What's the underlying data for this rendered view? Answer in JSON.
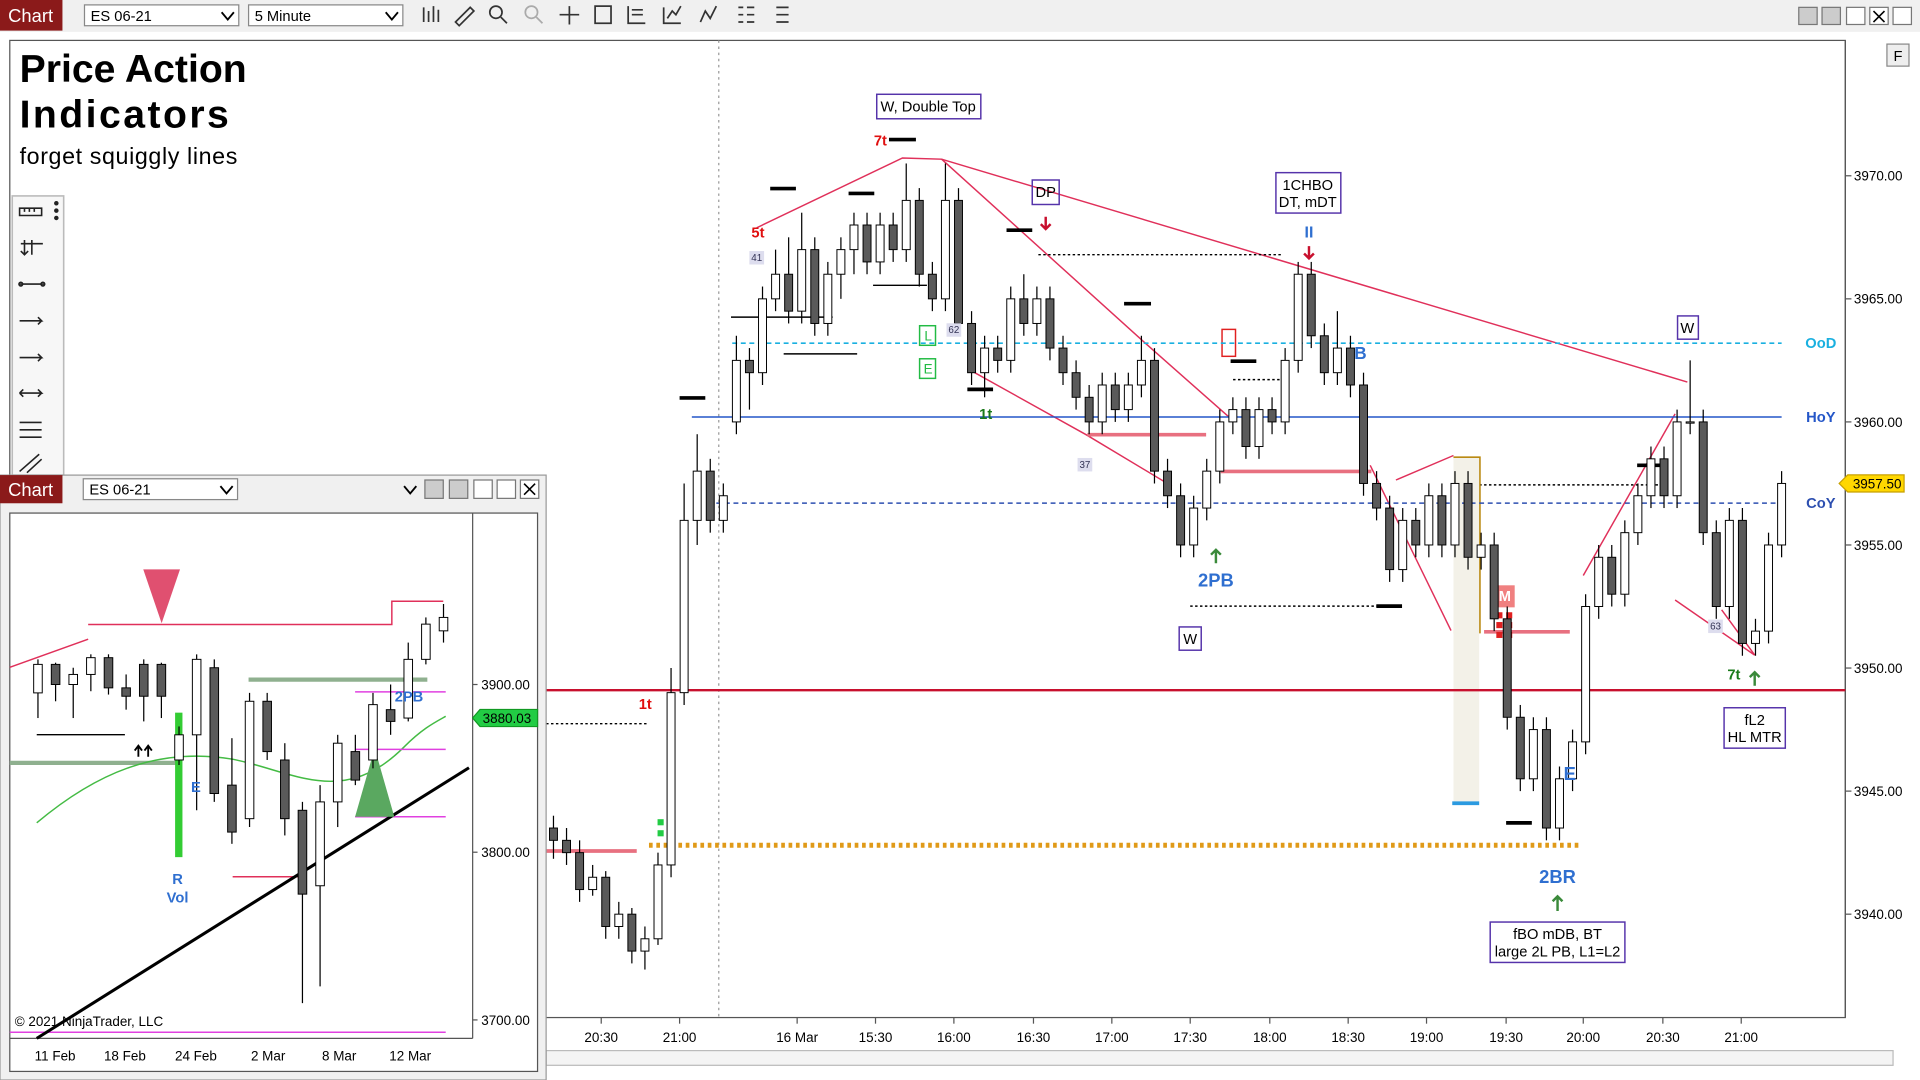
{
  "toolbar": {
    "chart_button": "Chart",
    "instrument": "ES 06-21",
    "interval": "5 Minute",
    "side_button": "F"
  },
  "title_overlay": {
    "line1": "Price Action",
    "line2": "Indicators",
    "line3": "forget squiggly lines"
  },
  "main_chart": {
    "type": "candlestick",
    "candles": [
      [
        3943.5,
        3944,
        3942.25,
        3943
      ],
      [
        3943,
        3943.5,
        3942,
        3942.5
      ],
      [
        3942.5,
        3943,
        3940.5,
        3941
      ],
      [
        3941,
        3942,
        3940.75,
        3941.5
      ],
      [
        3941.5,
        3941.75,
        3939,
        3939.5
      ],
      [
        3939.5,
        3940.5,
        3939,
        3940
      ],
      [
        3940,
        3940.25,
        3938,
        3938.5
      ],
      [
        3938.5,
        3939.5,
        3937.75,
        3939
      ],
      [
        3939,
        3942.5,
        3938.75,
        3942
      ],
      [
        3942,
        3950,
        3941.5,
        3949
      ],
      [
        3949,
        3957.5,
        3948.5,
        3956
      ],
      [
        3956,
        3959.5,
        3955,
        3958
      ],
      [
        3958,
        3958.5,
        3955.5,
        3956
      ],
      [
        3956,
        3957.5,
        3955.5,
        3957
      ],
      [
        3960,
        3963.5,
        3959.5,
        3962.5
      ],
      [
        3962.5,
        3963,
        3960.5,
        3962
      ],
      [
        3962,
        3965.5,
        3961.5,
        3965
      ],
      [
        3965,
        3967,
        3964.5,
        3966
      ],
      [
        3966,
        3967.5,
        3964,
        3964.5
      ],
      [
        3964.5,
        3968.5,
        3964,
        3967
      ],
      [
        3967,
        3967.5,
        3963.5,
        3964
      ],
      [
        3964,
        3966.5,
        3963.5,
        3966
      ],
      [
        3966,
        3967.5,
        3965,
        3967
      ],
      [
        3967,
        3968.5,
        3966,
        3968
      ],
      [
        3968,
        3968.5,
        3966,
        3966.5
      ],
      [
        3966.5,
        3968.5,
        3966,
        3968
      ],
      [
        3968,
        3968.5,
        3966.5,
        3967
      ],
      [
        3967,
        3970.5,
        3966.5,
        3969
      ],
      [
        3969,
        3969.5,
        3965.5,
        3966
      ],
      [
        3966,
        3966.5,
        3964.5,
        3965
      ],
      [
        3965,
        3970.5,
        3964.5,
        3969
      ],
      [
        3969,
        3969.5,
        3963.5,
        3964
      ],
      [
        3964,
        3964.5,
        3961.5,
        3962
      ],
      [
        3962,
        3963.5,
        3961,
        3963
      ],
      [
        3963,
        3963.5,
        3962,
        3962.5
      ],
      [
        3962.5,
        3965.5,
        3962,
        3965
      ],
      [
        3965,
        3966,
        3963.5,
        3964
      ],
      [
        3964,
        3965.5,
        3963.5,
        3965
      ],
      [
        3965,
        3965.5,
        3962.5,
        3963
      ],
      [
        3963,
        3963.5,
        3961.5,
        3962
      ],
      [
        3962,
        3962.5,
        3960.5,
        3961
      ],
      [
        3961,
        3961.5,
        3959.5,
        3960
      ],
      [
        3960,
        3962,
        3959.5,
        3961.5
      ],
      [
        3961.5,
        3962,
        3960,
        3960.5
      ],
      [
        3960.5,
        3962,
        3960,
        3961.5
      ],
      [
        3961.5,
        3963.5,
        3961,
        3962.5
      ],
      [
        3962.5,
        3963,
        3957.5,
        3958
      ],
      [
        3958,
        3958.5,
        3956.5,
        3957
      ],
      [
        3957,
        3957.5,
        3954.5,
        3955
      ],
      [
        3955,
        3957,
        3954.5,
        3956.5
      ],
      [
        3956.5,
        3958.5,
        3956,
        3958
      ],
      [
        3958,
        3960.5,
        3957.5,
        3960
      ],
      [
        3960,
        3961,
        3959.5,
        3960.5
      ],
      [
        3960.5,
        3961,
        3958.5,
        3959
      ],
      [
        3959,
        3961,
        3958.5,
        3960.5
      ],
      [
        3960.5,
        3961,
        3959.5,
        3960
      ],
      [
        3960,
        3963,
        3959.5,
        3962.5
      ],
      [
        3962.5,
        3966.5,
        3962,
        3966
      ],
      [
        3966,
        3966.5,
        3963,
        3963.5
      ],
      [
        3963.5,
        3964,
        3961.5,
        3962
      ],
      [
        3962,
        3964.5,
        3961.5,
        3963
      ],
      [
        3963,
        3963.5,
        3961,
        3961.5
      ],
      [
        3961.5,
        3962,
        3957,
        3957.5
      ],
      [
        3957.5,
        3958,
        3956,
        3956.5
      ],
      [
        3956.5,
        3957,
        3953.5,
        3954
      ],
      [
        3954,
        3956.5,
        3953.5,
        3956
      ],
      [
        3956,
        3956.5,
        3954.5,
        3955
      ],
      [
        3955,
        3957.5,
        3954.5,
        3957
      ],
      [
        3957,
        3957.5,
        3954.5,
        3955
      ],
      [
        3955,
        3958,
        3954.5,
        3957.5
      ],
      [
        3957.5,
        3958,
        3954,
        3954.5
      ],
      [
        3954.5,
        3955.5,
        3954,
        3955
      ],
      [
        3955,
        3955.5,
        3951.5,
        3952
      ],
      [
        3952,
        3952.5,
        3947.5,
        3948
      ],
      [
        3948,
        3948.5,
        3945,
        3945.5
      ],
      [
        3945.5,
        3948,
        3945,
        3947.5
      ],
      [
        3947.5,
        3948,
        3943,
        3943.5
      ],
      [
        3943.5,
        3946,
        3943,
        3945.5
      ],
      [
        3945.5,
        3947.5,
        3945,
        3947
      ],
      [
        3947,
        3953,
        3946.5,
        3952.5
      ],
      [
        3952.5,
        3955,
        3952,
        3954.5
      ],
      [
        3954.5,
        3955,
        3952.5,
        3953
      ],
      [
        3953,
        3956,
        3952.5,
        3955.5
      ],
      [
        3955.5,
        3957.5,
        3955,
        3957
      ],
      [
        3957,
        3959,
        3956.5,
        3958.5
      ],
      [
        3958.5,
        3959,
        3956.5,
        3957
      ],
      [
        3957,
        3960.5,
        3956.5,
        3960
      ],
      [
        3960,
        3962.5,
        3959.5,
        3960
      ],
      [
        3960,
        3960.5,
        3955,
        3955.5
      ],
      [
        3955.5,
        3956,
        3952,
        3952.5
      ],
      [
        3952.5,
        3956.5,
        3952,
        3956
      ],
      [
        3956,
        3956.5,
        3950.5,
        3951
      ],
      [
        3951,
        3952,
        3950.5,
        3951.5
      ],
      [
        3951.5,
        3955.5,
        3951,
        3955
      ],
      [
        3955,
        3958,
        3954.5,
        3957.5
      ]
    ],
    "up_color": "#ffffff",
    "down_color": "#5a5a5a",
    "ylim": [
      3935.8,
      3975.5
    ],
    "yticks": [
      {
        "value": 3970,
        "label": "3970.00"
      },
      {
        "value": 3965,
        "label": "3965.00"
      },
      {
        "value": 3960,
        "label": "3960.00"
      },
      {
        "value": 3955,
        "label": "3955.00"
      },
      {
        "value": 3950,
        "label": "3950.00"
      },
      {
        "value": 3945,
        "label": "3945.00"
      },
      {
        "value": 3940,
        "label": "3940.00"
      }
    ],
    "x_labels": [
      "20:30",
      "21:00",
      "16 Mar",
      "15:30",
      "16:00",
      "16:30",
      "17:00",
      "17:30",
      "18:00",
      "18:30",
      "19:00",
      "19:30",
      "20:00",
      "20:30",
      "21:00"
    ],
    "levels": [
      {
        "name": "OoD",
        "value": 3963.2,
        "color": "#1ab0e0"
      },
      {
        "name": "HoY",
        "value": 3960.2,
        "color": "#2456c8"
      },
      {
        "name": "CoY",
        "value": 3956.7,
        "color": "#2d4fb0"
      },
      {
        "value": 3949.1,
        "color": "#c8102e"
      },
      {
        "value": 3942.8,
        "color": "#e09a18"
      }
    ],
    "last_price": {
      "value": 3957.5,
      "label": "3957.50"
    },
    "annotations": [
      "W, Double Top",
      "7t",
      "5t",
      "41",
      "62",
      "37",
      "DP",
      "1CHBO",
      "DT, mDT",
      "II",
      "B",
      "1t",
      "1t",
      "2PB",
      "W",
      "W",
      "E",
      "2BR",
      "fBO mDB, BT",
      "large 2L PB, L1=L2",
      "fL2",
      "HL MTR",
      "7t",
      "63",
      "M",
      "L",
      "E"
    ]
  },
  "mini_window": {
    "chart_button": "Chart",
    "instrument": "ES 06-21",
    "type": "candlestick",
    "candles": [
      [
        3895,
        3915,
        3880,
        3912
      ],
      [
        3912,
        3913,
        3890,
        3900
      ],
      [
        3900,
        3910,
        3880,
        3906
      ],
      [
        3906,
        3918,
        3896,
        3916
      ],
      [
        3916,
        3918,
        3894,
        3898
      ],
      [
        3898,
        3906,
        3885,
        3893
      ],
      [
        3912,
        3915,
        3878,
        3893
      ],
      [
        3912,
        3913,
        3880,
        3893
      ],
      [
        3855,
        3875,
        3852,
        3870
      ],
      [
        3870,
        3918,
        3825,
        3915
      ],
      [
        3910,
        3915,
        3830,
        3835
      ],
      [
        3840,
        3868,
        3805,
        3812
      ],
      [
        3820,
        3895,
        3815,
        3890
      ],
      [
        3890,
        3895,
        3855,
        3860
      ],
      [
        3855,
        3865,
        3810,
        3820
      ],
      [
        3825,
        3830,
        3710,
        3775
      ],
      [
        3780,
        3840,
        3720,
        3830
      ],
      [
        3830,
        3870,
        3815,
        3865
      ],
      [
        3860,
        3870,
        3840,
        3843
      ],
      [
        3855,
        3895,
        3850,
        3888
      ],
      [
        3885,
        3900,
        3870,
        3878
      ],
      [
        3880,
        3925,
        3878,
        3915
      ],
      [
        3915,
        3940,
        3912,
        3936
      ],
      [
        3932,
        3948,
        3925,
        3940
      ]
    ],
    "up_color": "#ffffff",
    "down_color": "#5a5a5a",
    "ylim": [
      3689,
      4001.5
    ],
    "yticks": [
      {
        "value": 3900,
        "label": "3900.00"
      },
      {
        "value": 3800,
        "label": "3800.00"
      },
      {
        "value": 3700,
        "label": "3700.00"
      }
    ],
    "x_labels": [
      "11 Feb",
      "18 Feb",
      "24 Feb",
      "2 Mar",
      "8 Mar",
      "12 Mar"
    ],
    "last_price": {
      "value": 3880.03,
      "label": "3880.03"
    },
    "annotations": [
      "2PB",
      "E",
      "R",
      "Vol"
    ],
    "copyright": "© 2021 NinjaTrader, LLC"
  }
}
